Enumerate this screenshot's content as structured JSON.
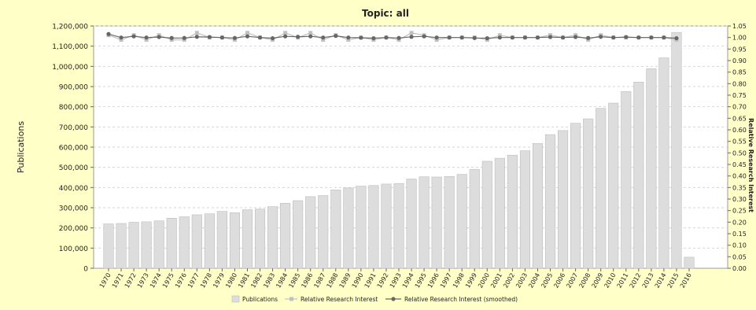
{
  "chart_data": {
    "type": "bar",
    "title": "Topic: all",
    "ylabel_left": "Publications",
    "ylabel_right": "Relative Research Interest",
    "ylim_left": [
      0,
      1200000
    ],
    "ylim_right": [
      0,
      1.05
    ],
    "yticks_left": [
      "0",
      "100,000",
      "200,000",
      "300,000",
      "400,000",
      "500,000",
      "600,000",
      "700,000",
      "800,000",
      "900,000",
      "1,000,000",
      "1,100,000",
      "1,200,000"
    ],
    "yticks_right": [
      "0.00",
      "0.05",
      "0.10",
      "0.15",
      "0.20",
      "0.25",
      "0.30",
      "0.35",
      "0.40",
      "0.45",
      "0.50",
      "0.55",
      "0.60",
      "0.65",
      "0.70",
      "0.75",
      "0.80",
      "0.85",
      "0.90",
      "0.95",
      "1.00",
      "1.05"
    ],
    "grid": true,
    "legend_position": "bottom",
    "categories": [
      "1970",
      "1971",
      "1972",
      "1973",
      "1974",
      "1975",
      "1976",
      "1977",
      "1978",
      "1979",
      "1980",
      "1981",
      "1982",
      "1983",
      "1984",
      "1985",
      "1986",
      "1987",
      "1988",
      "1989",
      "1990",
      "1991",
      "1992",
      "1993",
      "1994",
      "1995",
      "1996",
      "1997",
      "1998",
      "1999",
      "2000",
      "2001",
      "2002",
      "2003",
      "2004",
      "2005",
      "2006",
      "2007",
      "2008",
      "2009",
      "2010",
      "2011",
      "2012",
      "2013",
      "2014",
      "2015",
      "2016"
    ],
    "series": [
      {
        "name": "Publications",
        "kind": "bar",
        "axis": "left",
        "color": "#dddddd",
        "values": [
          220000,
          222000,
          228000,
          230000,
          235000,
          248000,
          255000,
          265000,
          270000,
          282000,
          275000,
          290000,
          293000,
          305000,
          322000,
          335000,
          355000,
          360000,
          388000,
          398000,
          407000,
          410000,
          417000,
          420000,
          442000,
          453000,
          452000,
          455000,
          465000,
          490000,
          530000,
          545000,
          560000,
          582000,
          618000,
          662000,
          682000,
          718000,
          740000,
          792000,
          818000,
          875000,
          922000,
          988000,
          1042000,
          1168000,
          55000
        ]
      },
      {
        "name": "Relative Research Interest",
        "kind": "line",
        "axis": "right",
        "color": "#c0c0c0",
        "values": [
          1.01,
          0.99,
          1.01,
          0.99,
          1.01,
          0.99,
          0.99,
          1.02,
          1.0,
          1.0,
          0.99,
          1.02,
          1.0,
          0.99,
          1.02,
          1.0,
          1.02,
          0.99,
          1.01,
          0.99,
          1.0,
          0.99,
          1.0,
          0.99,
          1.02,
          1.01,
          0.99,
          1.0,
          1.0,
          1.0,
          0.99,
          1.01,
          1.0,
          1.0,
          1.0,
          1.01,
          1.0,
          1.01,
          0.99,
          1.01,
          1.0,
          1.0,
          1.0,
          1.0,
          1.0,
          0.99,
          null
        ]
      },
      {
        "name": "Relative Research Interest (smoothed)",
        "kind": "line",
        "axis": "right",
        "color": "#666666",
        "values": [
          1.015,
          1.0,
          1.005,
          1.0,
          1.002,
          0.998,
          0.998,
          1.003,
          1.002,
          1.0,
          0.998,
          1.005,
          1.0,
          0.997,
          1.005,
          1.003,
          1.005,
          1.0,
          1.007,
          1.0,
          0.999,
          0.997,
          1.0,
          0.998,
          1.003,
          1.005,
          1.0,
          1.0,
          1.0,
          0.998,
          0.997,
          1.0,
          1.0,
          1.0,
          1.0,
          1.002,
          1.0,
          1.002,
          0.998,
          1.003,
          1.0,
          1.002,
          1.0,
          1.0,
          1.0,
          0.997,
          null
        ]
      }
    ]
  }
}
